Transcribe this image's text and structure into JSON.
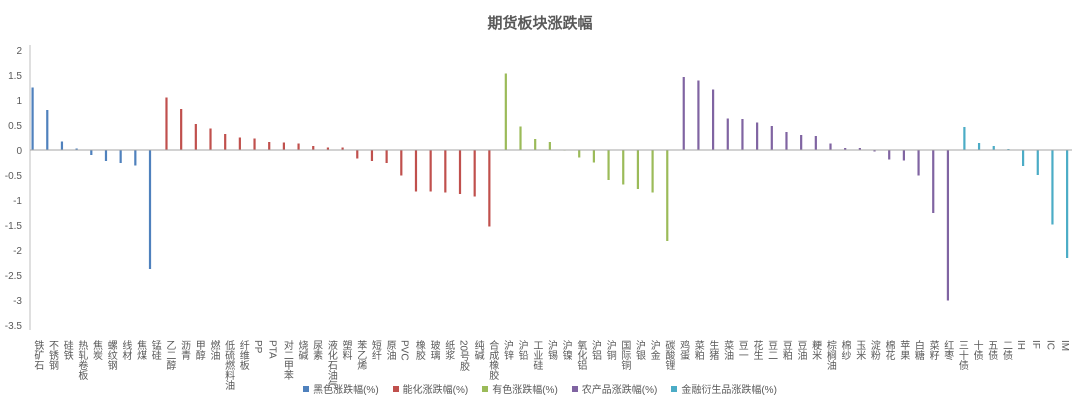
{
  "chart_data": {
    "type": "bar",
    "title": "期货板块涨跌幅",
    "xlabel": "",
    "ylabel": "",
    "ylim": [
      -3.5,
      2
    ],
    "yticks": [
      "2",
      "1.5",
      "1",
      "0.5",
      "0",
      "-0.5",
      "-1",
      "-1.5",
      "-2",
      "-2.5",
      "-3",
      "-3.5"
    ],
    "legend_position": "bottom",
    "series": [
      {
        "name": "黑色涨跌幅(%)",
        "color": "#4F81BD",
        "categories": [
          "铁矿石",
          "不锈钢",
          "硅铁",
          "热轧卷板",
          "焦炭",
          "螺纹钢",
          "线材",
          "焦煤",
          "锰硅"
        ],
        "values": [
          1.25,
          0.8,
          0.17,
          0.03,
          -0.1,
          -0.22,
          -0.26,
          -0.31,
          -2.38
        ]
      },
      {
        "name": "能化涨跌幅(%)",
        "color": "#C0504D",
        "categories": [
          "乙二醇",
          "沥青",
          "甲醇",
          "燃油",
          "低硫燃料油",
          "纤维板",
          "PP",
          "PTA",
          "对二甲苯",
          "烧碱",
          "尿素",
          "液化石油气",
          "塑料",
          "苯乙烯",
          "短纤",
          "原油",
          "PVC",
          "橡胶",
          "玻璃",
          "纸浆",
          "20号胶",
          "纯碱",
          "合成橡胶"
        ],
        "values": [
          1.05,
          0.82,
          0.52,
          0.43,
          0.32,
          0.25,
          0.23,
          0.16,
          0.15,
          0.13,
          0.08,
          0.05,
          0.05,
          -0.17,
          -0.22,
          -0.26,
          -0.51,
          -0.83,
          -0.83,
          -0.85,
          -0.88,
          -0.93,
          -1.53
        ]
      },
      {
        "name": "有色涨跌幅(%)",
        "color": "#9BBB59",
        "categories": [
          "沪锌",
          "沪铅",
          "工业硅",
          "沪锡",
          "沪镍",
          "氧化铝",
          "沪铝",
          "沪铜",
          "国际铜",
          "沪银",
          "沪金",
          "碳酸锂"
        ],
        "values": [
          1.53,
          0.47,
          0.22,
          0.16,
          0.0,
          -0.15,
          -0.25,
          -0.6,
          -0.69,
          -0.78,
          -0.85,
          -1.82
        ]
      },
      {
        "name": "农产品涨跌幅(%)",
        "color": "#8064A2",
        "categories": [
          "鸡蛋",
          "菜粕",
          "生猪",
          "菜油",
          "豆一",
          "花生",
          "豆二",
          "豆粕",
          "豆油",
          "粳米",
          "棕榈油",
          "棉纱",
          "玉米",
          "淀粉",
          "棉花",
          "苹果",
          "白糖",
          "菜籽",
          "红枣"
        ],
        "values": [
          1.46,
          1.39,
          1.21,
          0.63,
          0.62,
          0.55,
          0.48,
          0.36,
          0.3,
          0.28,
          0.13,
          0.04,
          0.04,
          -0.03,
          -0.19,
          -0.21,
          -0.51,
          -1.26,
          -3.01
        ]
      },
      {
        "name": "金融衍生品涨跌幅(%)",
        "color": "#4BACC6",
        "categories": [
          "三十债",
          "十债",
          "五债",
          "二债",
          "IH",
          "IF",
          "IC",
          "IM"
        ],
        "values": [
          0.46,
          0.14,
          0.08,
          0.02,
          -0.32,
          -0.5,
          -1.49,
          -2.16
        ]
      }
    ]
  }
}
